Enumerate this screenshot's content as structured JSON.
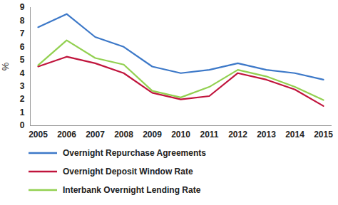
{
  "chart_data": {
    "type": "line",
    "y_label": "%",
    "categories": [
      "2005",
      "2006",
      "2007",
      "2008",
      "2009",
      "2010",
      "2011",
      "2012",
      "2013",
      "2014",
      "2015"
    ],
    "series": [
      {
        "name": "Overnight Repurchase Agreements",
        "color": "#3c78c8",
        "values": [
          7.5,
          8.5,
          6.75,
          6.0,
          4.5,
          4.0,
          4.25,
          4.75,
          4.25,
          4.0,
          3.5
        ]
      },
      {
        "name": "Overnight Deposit Window Rate",
        "color": "#c0143c",
        "values": [
          4.5,
          5.25,
          4.75,
          4.0,
          2.5,
          2.0,
          2.25,
          4.0,
          3.5,
          2.75,
          1.5
        ]
      },
      {
        "name": "Interbank Overnight Lending Rate",
        "color": "#92d050",
        "values": [
          4.6,
          6.5,
          5.15,
          4.65,
          2.65,
          2.15,
          2.95,
          4.25,
          3.75,
          2.95,
          1.95
        ]
      }
    ],
    "ylim": [
      0,
      9
    ],
    "yticks": [
      0,
      1,
      2,
      3,
      4,
      5,
      6,
      7,
      8,
      9
    ],
    "grid": false,
    "legend": "bottom"
  }
}
